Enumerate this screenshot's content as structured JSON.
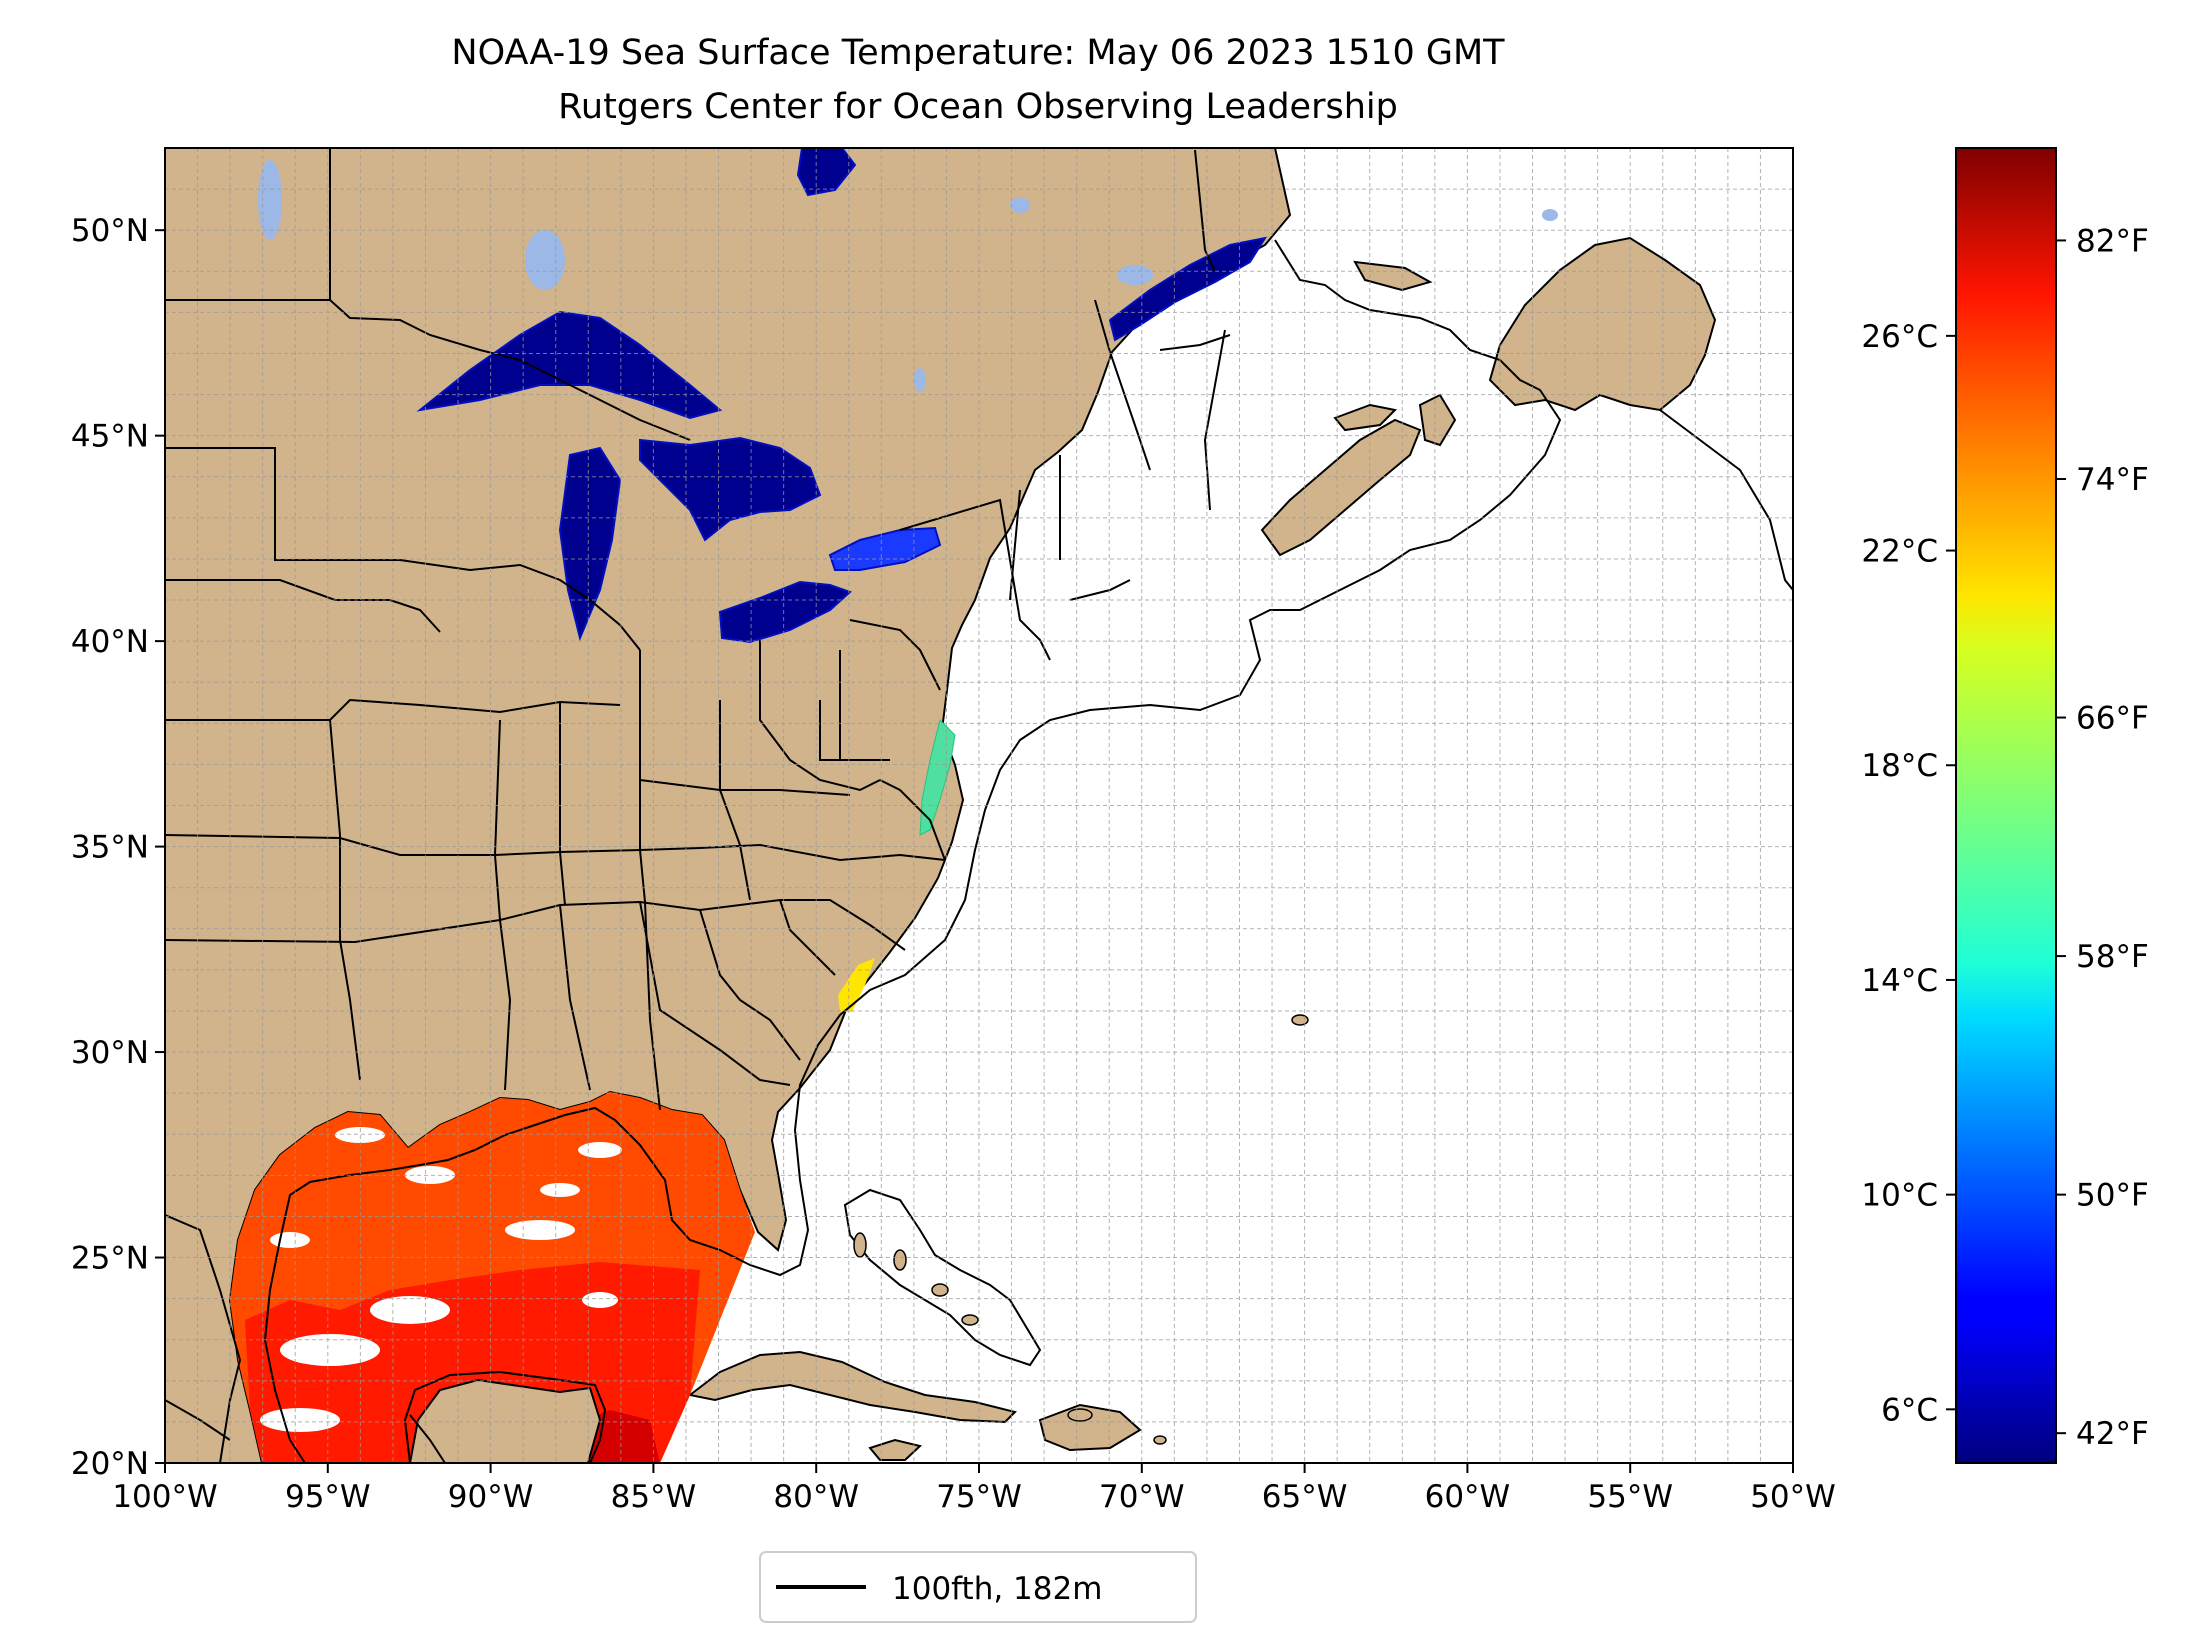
{
  "title": "NOAA-19 Sea Surface Temperature: May 06 2023 1510 GMT",
  "subtitle": "Rutgers Center for Ocean Observing Leadership",
  "map": {
    "lon_range": [
      -100,
      -50
    ],
    "lat_range": [
      20,
      52
    ],
    "gridlines": true,
    "x_ticks": [
      {
        "lon": -100,
        "label": "100°W"
      },
      {
        "lon": -95,
        "label": "95°W"
      },
      {
        "lon": -90,
        "label": "90°W"
      },
      {
        "lon": -85,
        "label": "85°W"
      },
      {
        "lon": -80,
        "label": "80°W"
      },
      {
        "lon": -75,
        "label": "75°W"
      },
      {
        "lon": -70,
        "label": "70°W"
      },
      {
        "lon": -65,
        "label": "65°W"
      },
      {
        "lon": -60,
        "label": "60°W"
      },
      {
        "lon": -55,
        "label": "55°W"
      },
      {
        "lon": -50,
        "label": "50°W"
      }
    ],
    "y_ticks": [
      {
        "lat": 20,
        "label": "20°N"
      },
      {
        "lat": 25,
        "label": "25°N"
      },
      {
        "lat": 30,
        "label": "30°N"
      },
      {
        "lat": 35,
        "label": "35°N"
      },
      {
        "lat": 40,
        "label": "40°N"
      },
      {
        "lat": 45,
        "label": "45°N"
      },
      {
        "lat": 50,
        "label": "50°N"
      }
    ],
    "land_color": "#d2b48c",
    "inland_water_color": "#9bb8e6"
  },
  "colorbar": {
    "colormap": "jet",
    "range_c": [
      5,
      29.5
    ],
    "celsius_ticks": [
      {
        "value": 6,
        "label": "6°C"
      },
      {
        "value": 10,
        "label": "10°C"
      },
      {
        "value": 14,
        "label": "14°C"
      },
      {
        "value": 18,
        "label": "18°C"
      },
      {
        "value": 22,
        "label": "22°C"
      },
      {
        "value": 26,
        "label": "26°C"
      }
    ],
    "fahrenheit_ticks": [
      {
        "value": 42,
        "label": "42°F"
      },
      {
        "value": 50,
        "label": "50°F"
      },
      {
        "value": 58,
        "label": "58°F"
      },
      {
        "value": 66,
        "label": "66°F"
      },
      {
        "value": 74,
        "label": "74°F"
      },
      {
        "value": 82,
        "label": "82°F"
      }
    ]
  },
  "legend": {
    "entries": [
      {
        "label": "100fth, 182m",
        "color": "#000000"
      }
    ],
    "placement": "bottom-center"
  }
}
